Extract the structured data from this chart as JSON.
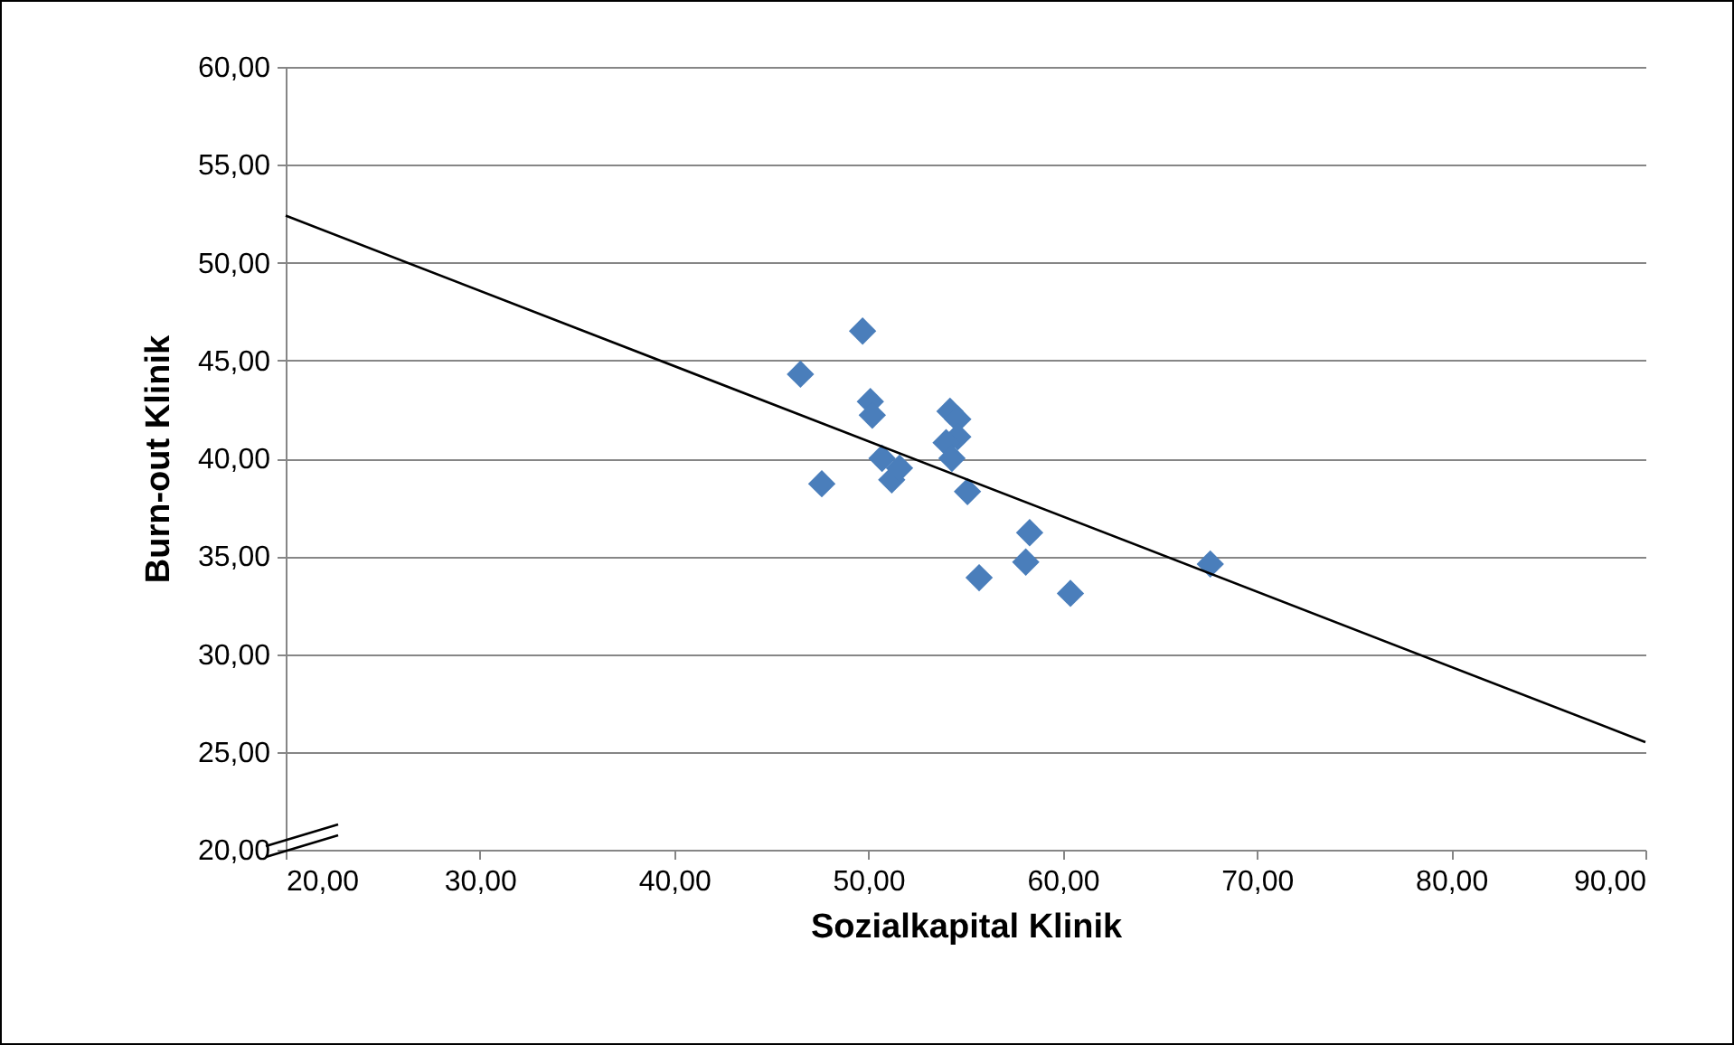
{
  "chart_data": {
    "type": "scatter",
    "xlabel": "Sozialkapital Klinik",
    "ylabel": "Burn-out Klinik",
    "series": [
      {
        "color": "#4a7ebb",
        "marker": "diamond",
        "x": [
          46.5,
          49.7,
          50.1,
          50.2,
          47.6,
          50.7,
          51.2,
          51.6,
          54.2,
          54.6,
          54.6,
          54.0,
          54.3,
          55.1,
          58.3,
          58.1,
          55.7,
          60.4,
          67.6
        ],
        "values": [
          44.3,
          46.5,
          42.9,
          42.2,
          38.7,
          40.0,
          38.9,
          39.5,
          42.4,
          42.0,
          41.1,
          40.8,
          40.0,
          38.3,
          36.2,
          34.7,
          33.9,
          33.1,
          34.6
        ]
      },
      {
        "type": "line",
        "color": "#000000",
        "marker": "none",
        "line_style": "solid",
        "x": [
          20,
          90
        ],
        "values": [
          52.4,
          25.5
        ]
      }
    ],
    "xlim": [
      20,
      90
    ],
    "xticks": [
      {
        "value": 20,
        "label": "20,00"
      },
      {
        "value": 30,
        "label": "30,00"
      },
      {
        "value": 40,
        "label": "40,00"
      },
      {
        "value": 50,
        "label": "50,00"
      },
      {
        "value": 60,
        "label": "60,00"
      },
      {
        "value": 70,
        "label": "70,00"
      },
      {
        "value": 80,
        "label": "80,00"
      },
      {
        "value": 90,
        "label": "90,00"
      }
    ],
    "ylim": [
      20,
      60
    ],
    "yticks": [
      {
        "value": 20,
        "label": "20,00"
      },
      {
        "value": 25,
        "label": "25,00"
      },
      {
        "value": 30,
        "label": "30,00"
      },
      {
        "value": 35,
        "label": "35,00"
      },
      {
        "value": 40,
        "label": "40,00"
      },
      {
        "value": 45,
        "label": "45,00"
      },
      {
        "value": 50,
        "label": "50,00"
      },
      {
        "value": 55,
        "label": "55,00"
      },
      {
        "value": 60,
        "label": "60,00"
      }
    ],
    "grid": "y"
  }
}
